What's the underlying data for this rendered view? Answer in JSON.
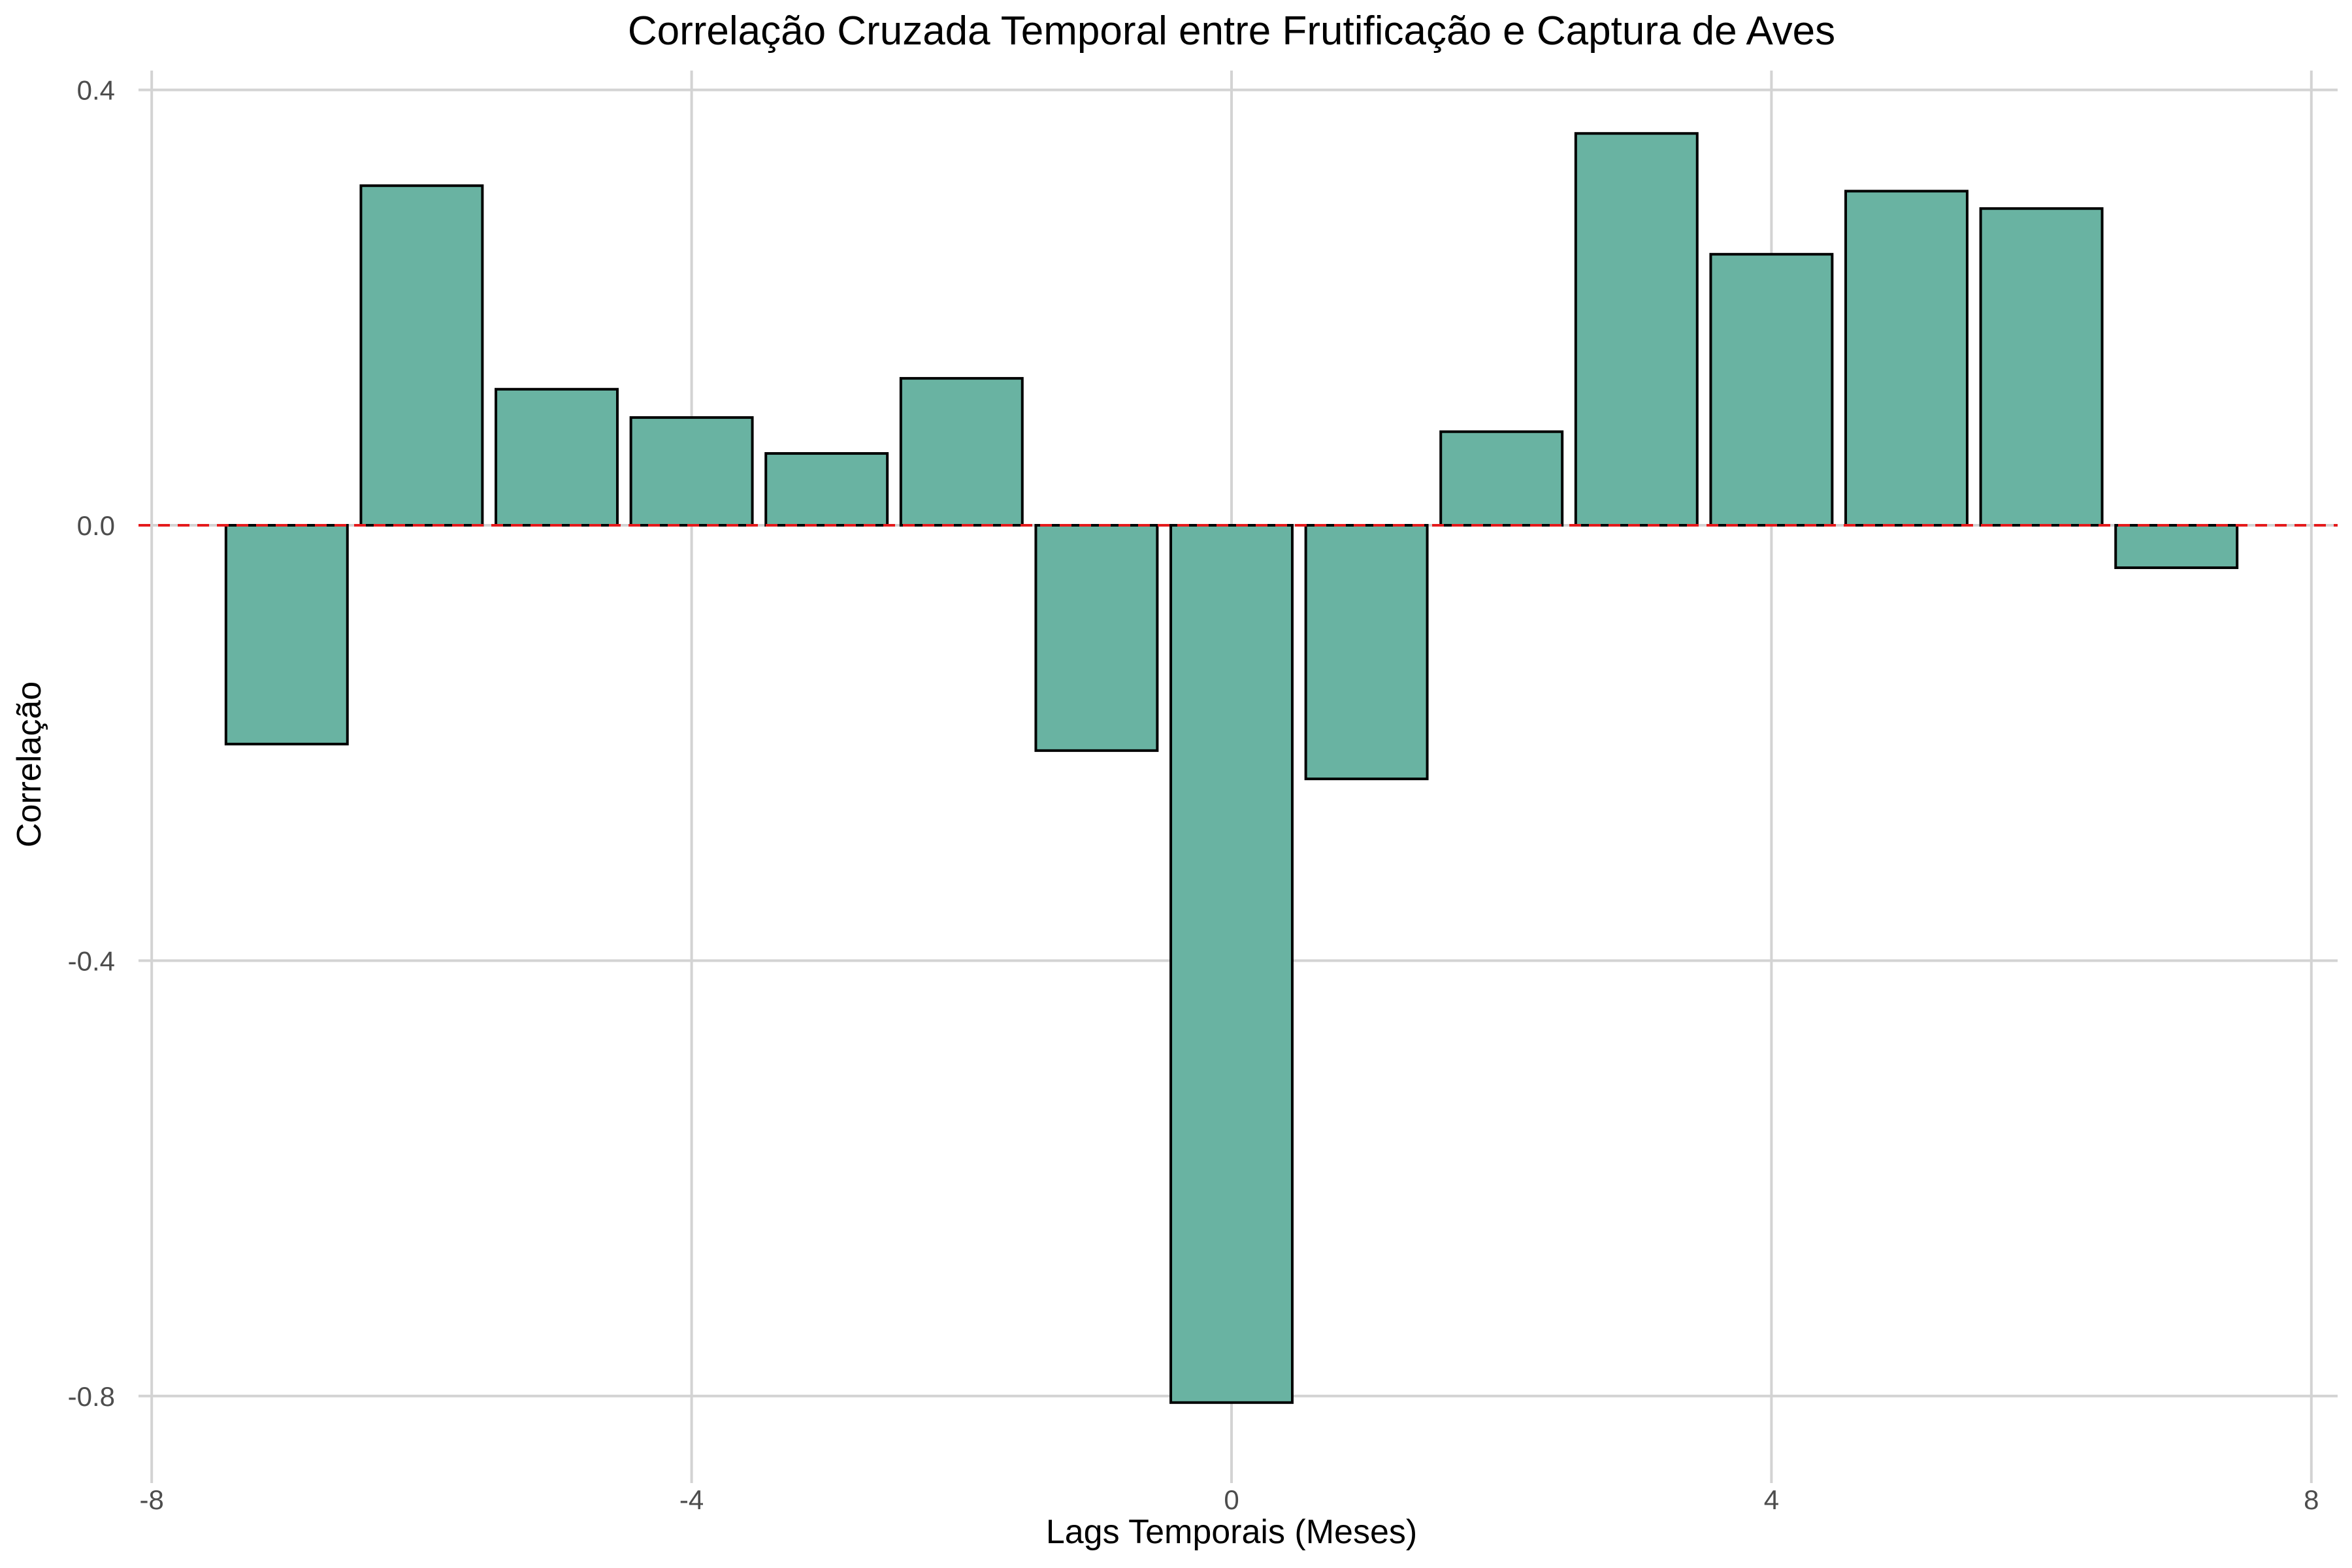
{
  "chart_data": {
    "type": "bar",
    "title": "Correlação Cruzada Temporal entre Frutificação e Captura de Aves",
    "xlabel": "Lags Temporais (Meses)",
    "ylabel": "Correlação",
    "x": [
      -7,
      -6,
      -5,
      -4,
      -3,
      -2,
      -1,
      0,
      1,
      2,
      3,
      4,
      5,
      6,
      7
    ],
    "values": [
      -0.201,
      0.312,
      0.125,
      0.099,
      0.066,
      0.135,
      -0.207,
      -0.806,
      -0.233,
      0.086,
      0.36,
      0.249,
      0.307,
      0.291,
      -0.039
    ],
    "xlim": [
      -8,
      8
    ],
    "ylim": [
      -0.8,
      0.4
    ],
    "x_ticks": [
      {
        "value": -8,
        "label": "-8"
      },
      {
        "value": -4,
        "label": "-4"
      },
      {
        "value": 0,
        "label": "0"
      },
      {
        "value": 4,
        "label": "4"
      },
      {
        "value": 8,
        "label": "8"
      }
    ],
    "y_ticks": [
      {
        "value": 0.4,
        "label": "0.4"
      },
      {
        "value": 0.0,
        "label": "0.0"
      },
      {
        "value": -0.4,
        "label": "-0.4"
      },
      {
        "value": -0.8,
        "label": "-0.8"
      }
    ],
    "reference_line": {
      "y": 0,
      "style": "dashed",
      "color": "#e41a1c"
    },
    "grid": true,
    "legend": "none",
    "colors": {
      "bar_fill": "#69b3a2",
      "bar_stroke": "#000000",
      "grid": "#d3d3d3"
    }
  }
}
